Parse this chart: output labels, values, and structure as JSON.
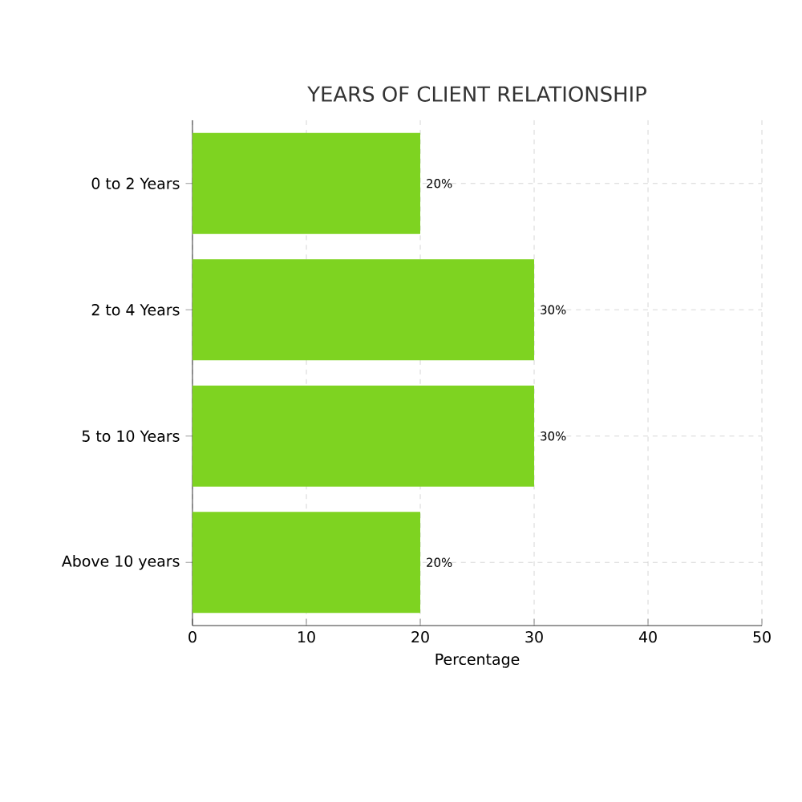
{
  "chart_data": {
    "type": "bar",
    "orientation": "horizontal",
    "title": "YEARS OF CLIENT RELATIONSHIP",
    "xlabel": "Percentage",
    "categories": [
      "0 to 2 Years",
      "2 to 4 Years",
      "5 to 10 Years",
      "Above 10 years"
    ],
    "values": [
      20,
      30,
      30,
      20
    ],
    "value_labels": [
      "20%",
      "30%",
      "30%",
      "20%"
    ],
    "color": "#7ed321",
    "xlim": [
      0,
      50
    ],
    "xticks": [
      0,
      10,
      20,
      30,
      40,
      50
    ],
    "grid": true
  }
}
